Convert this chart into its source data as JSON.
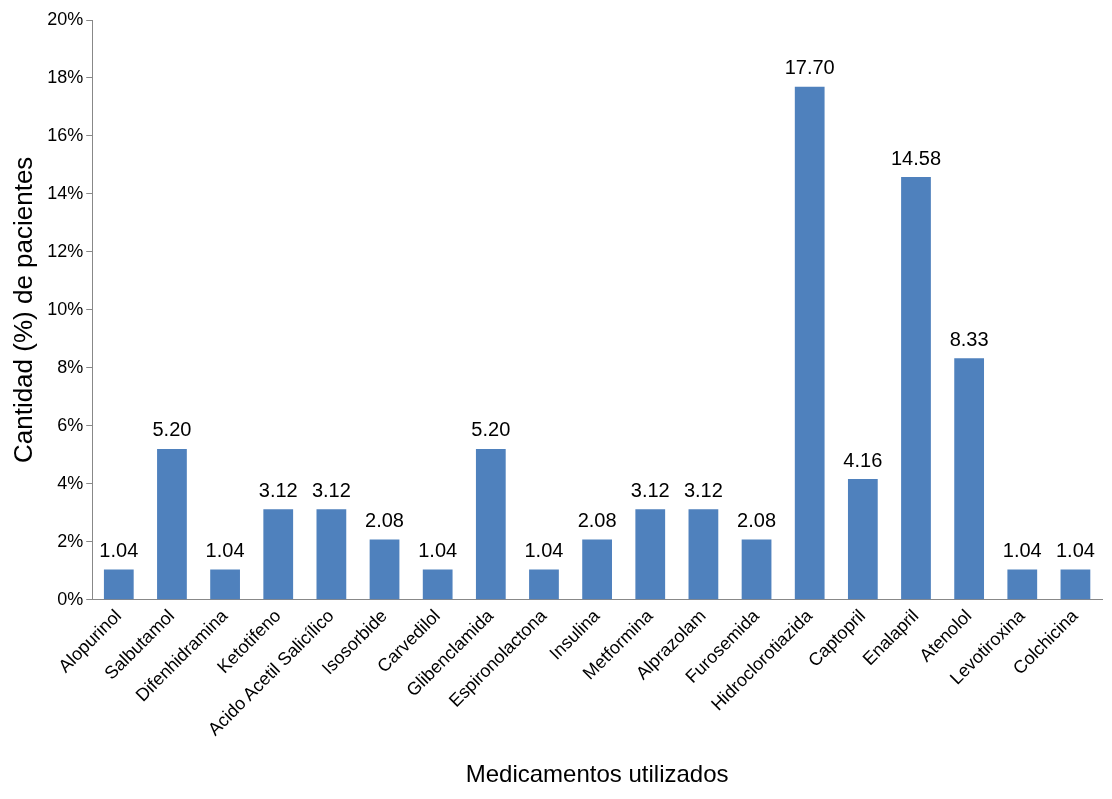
{
  "chart_data": {
    "type": "bar",
    "xlabel": "Medicamentos utilizados",
    "ylabel": "Cantidad (%) de pacientes",
    "categories": [
      "Alopurinol",
      "Salbutamol",
      "Difenhidramina",
      "Ketotifeno",
      "Acido Acetil Salicílico",
      "Isosorbide",
      "Carvedilol",
      "Glibenclamida",
      "Espironolactona",
      "Insulina",
      "Metformina",
      "Alprazolam",
      "Furosemida",
      "Hidroclorotiazida",
      "Captopril",
      "Enalapril",
      "Atenolol",
      "Levotiroxina",
      "Colchicina"
    ],
    "values": [
      1.04,
      5.2,
      1.04,
      3.12,
      3.12,
      2.08,
      1.04,
      5.2,
      1.04,
      2.08,
      3.12,
      3.12,
      2.08,
      17.7,
      4.16,
      14.58,
      8.33,
      1.04,
      1.04
    ],
    "value_labels": [
      "1.04",
      "5.20",
      "1.04",
      "3.12",
      "3.12",
      "2.08",
      "1.04",
      "5.20",
      "1.04",
      "2.08",
      "3.12",
      "3.12",
      "2.08",
      "17.70",
      "4.16",
      "14.58",
      "8.33",
      "1.04",
      "1.04"
    ],
    "color": "#4f81bd",
    "ylim": [
      0,
      20
    ],
    "yticks": [
      {
        "value": 0,
        "label": "0%"
      },
      {
        "value": 2,
        "label": "2%"
      },
      {
        "value": 4,
        "label": "4%"
      },
      {
        "value": 6,
        "label": "6%"
      },
      {
        "value": 8,
        "label": "8%"
      },
      {
        "value": 10,
        "label": "10%"
      },
      {
        "value": 12,
        "label": "12%"
      },
      {
        "value": 14,
        "label": "14%"
      },
      {
        "value": 16,
        "label": "16%"
      },
      {
        "value": 18,
        "label": "18%"
      },
      {
        "value": 20,
        "label": "20%"
      }
    ],
    "grid": false,
    "legend": false
  }
}
